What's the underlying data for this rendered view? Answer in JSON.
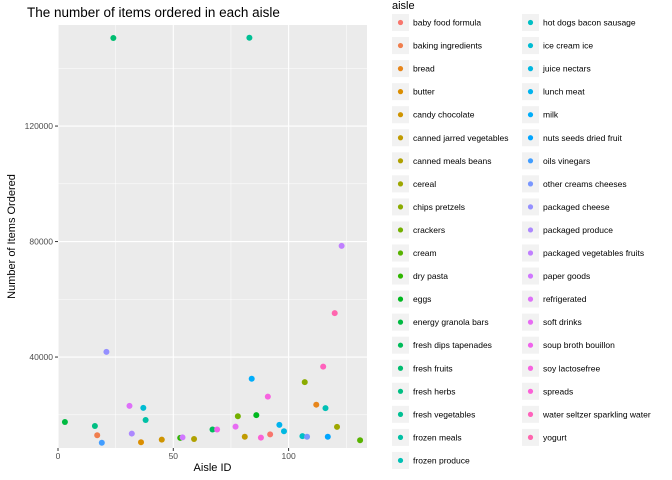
{
  "chart_data": {
    "type": "scatter",
    "title": "The number of items ordered in each aisle",
    "xlabel": "Aisle ID",
    "ylabel": "Number of Items Ordered",
    "xlim": [
      0,
      134
    ],
    "ylim": [
      8500,
      155000
    ],
    "x_ticks": [
      0,
      50,
      100
    ],
    "y_ticks": [
      40000,
      80000,
      120000
    ],
    "y_tick_labels": [
      "40000",
      "80000",
      "120000"
    ],
    "legend_title": "aisle",
    "legend_position": "right",
    "grid": true,
    "series": [
      {
        "name": "baby food formula",
        "color": "#F8766D",
        "x": 92,
        "y": 13200
      },
      {
        "name": "baking ingredients",
        "color": "#F07E4D",
        "x": 17,
        "y": 12900
      },
      {
        "name": "bread",
        "color": "#E7861B",
        "x": 112,
        "y": 23500
      },
      {
        "name": "butter",
        "color": "#DB8E00",
        "x": 36,
        "y": 10500
      },
      {
        "name": "candy chocolate",
        "color": "#CF9400",
        "x": 45,
        "y": 11400
      },
      {
        "name": "canned jarred vegetables",
        "color": "#C09B00",
        "x": 81,
        "y": 12400
      },
      {
        "name": "canned meals beans",
        "color": "#B0A100",
        "x": 59,
        "y": 11600
      },
      {
        "name": "cereal",
        "color": "#9EA700",
        "x": 121,
        "y": 15800
      },
      {
        "name": "chips pretzels",
        "color": "#8BAB00",
        "x": 107,
        "y": 31300
      },
      {
        "name": "crackers",
        "color": "#74B000",
        "x": 78,
        "y": 19500
      },
      {
        "name": "cream",
        "color": "#58B300",
        "x": 131,
        "y": 11200
      },
      {
        "name": "dry pasta",
        "color": "#2FB600",
        "x": 53,
        "y": 12000
      },
      {
        "name": "eggs",
        "color": "#00B81F",
        "x": 86,
        "y": 19900
      },
      {
        "name": "energy granola bars",
        "color": "#00BA41",
        "x": 3,
        "y": 17500
      },
      {
        "name": "fresh dips tapenades",
        "color": "#00BC5A",
        "x": 67,
        "y": 14900
      },
      {
        "name": "fresh fruits",
        "color": "#00BD70",
        "x": 24,
        "y": 150500
      },
      {
        "name": "fresh herbs",
        "color": "#00BF83",
        "x": 16,
        "y": 16100
      },
      {
        "name": "fresh vegetables",
        "color": "#00C094",
        "x": 83,
        "y": 150600
      },
      {
        "name": "frozen meals",
        "color": "#00C0A5",
        "x": 38,
        "y": 18200
      },
      {
        "name": "frozen produce",
        "color": "#00C0B5",
        "x": 116,
        "y": 22300
      },
      {
        "name": "hot dogs bacon sausage",
        "color": "#00BFC4",
        "x": 106,
        "y": 12600
      },
      {
        "name": "ice cream ice",
        "color": "#00BCD3",
        "x": 37,
        "y": 22400
      },
      {
        "name": "juice nectars",
        "color": "#00B8E1",
        "x": 98,
        "y": 14300
      },
      {
        "name": "lunch meat",
        "color": "#00B3EE",
        "x": 96,
        "y": 16500
      },
      {
        "name": "milk",
        "color": "#00ADFA",
        "x": 84,
        "y": 32500
      },
      {
        "name": "nuts seeds dried fruit",
        "color": "#00A5FF",
        "x": 117,
        "y": 12400
      },
      {
        "name": "oils vinegars",
        "color": "#419DFF",
        "x": 19,
        "y": 10300
      },
      {
        "name": "other creams cheeses",
        "color": "#7997FF",
        "x": 108,
        "y": 12400
      },
      {
        "name": "packaged cheese",
        "color": "#9590FF",
        "x": 21,
        "y": 41800
      },
      {
        "name": "packaged produce",
        "color": "#AC88FF",
        "x": 32,
        "y": 13500
      },
      {
        "name": "packaged vegetables fruits",
        "color": "#C07FFF",
        "x": 123,
        "y": 78500
      },
      {
        "name": "paper goods",
        "color": "#D077FF",
        "x": 54,
        "y": 12200
      },
      {
        "name": "refrigerated",
        "color": "#DE70F9",
        "x": 31,
        "y": 23100
      },
      {
        "name": "soft drinks",
        "color": "#E76BF3",
        "x": 77,
        "y": 15900
      },
      {
        "name": "soup broth bouillon",
        "color": "#F063EC",
        "x": 69,
        "y": 14900
      },
      {
        "name": "soy lactosefree",
        "color": "#F763E0",
        "x": 91,
        "y": 26300
      },
      {
        "name": "spreads",
        "color": "#FB61D7",
        "x": 88,
        "y": 12100
      },
      {
        "name": "water seltzer sparkling water",
        "color": "#FF62BC",
        "x": 115,
        "y": 36700
      },
      {
        "name": "yogurt",
        "color": "#FF65AE",
        "x": 120,
        "y": 55200
      }
    ]
  }
}
